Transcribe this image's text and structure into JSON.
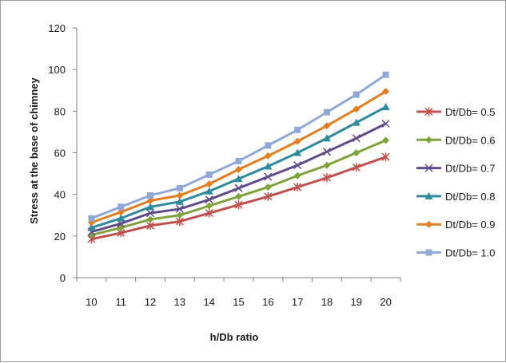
{
  "chart_data": {
    "type": "line",
    "title": "",
    "xlabel": "h/Db ratio",
    "ylabel": "Stress at the base of chimney",
    "x": [
      10,
      11,
      12,
      13,
      14,
      15,
      16,
      17,
      18,
      19,
      20
    ],
    "ylim": [
      0,
      120
    ],
    "yticks": [
      0,
      20,
      40,
      60,
      80,
      100,
      120
    ],
    "grid": false,
    "legend_position": "right",
    "series": [
      {
        "name": "Dt/Db= 0.5",
        "color": "#c0504d",
        "marker": "asterisk",
        "values": [
          18.5,
          21.5,
          25,
          27,
          31,
          35,
          39,
          43.5,
          48,
          53,
          58
        ]
      },
      {
        "name": "Dt/Db= 0.6",
        "color": "#7fa33b",
        "marker": "diamond",
        "values": [
          20.5,
          24,
          28,
          30,
          34.5,
          39,
          43.5,
          49,
          54,
          60,
          66
        ]
      },
      {
        "name": "Dt/Db= 0.7",
        "color": "#5f4b8b",
        "marker": "x",
        "values": [
          22,
          26,
          31,
          33,
          37.5,
          43,
          48.5,
          54,
          60.5,
          67,
          74
        ]
      },
      {
        "name": "Dt/Db= 0.8",
        "color": "#2e8a9e",
        "marker": "triangle",
        "values": [
          24,
          28.5,
          34,
          36.5,
          41.5,
          47.5,
          53.5,
          60,
          67,
          74.5,
          82
        ]
      },
      {
        "name": "Dt/Db= 0.9",
        "color": "#e37d22",
        "marker": "diamond",
        "values": [
          26.5,
          31.5,
          37,
          39.5,
          45,
          52,
          58.5,
          65.5,
          73,
          81,
          89.5
        ]
      },
      {
        "name": "Dt/Db= 1.0",
        "color": "#8fa8d8",
        "marker": "square",
        "values": [
          28.5,
          34,
          39.5,
          43,
          49.5,
          56,
          63.5,
          71,
          79.5,
          88,
          97.5
        ]
      }
    ]
  }
}
